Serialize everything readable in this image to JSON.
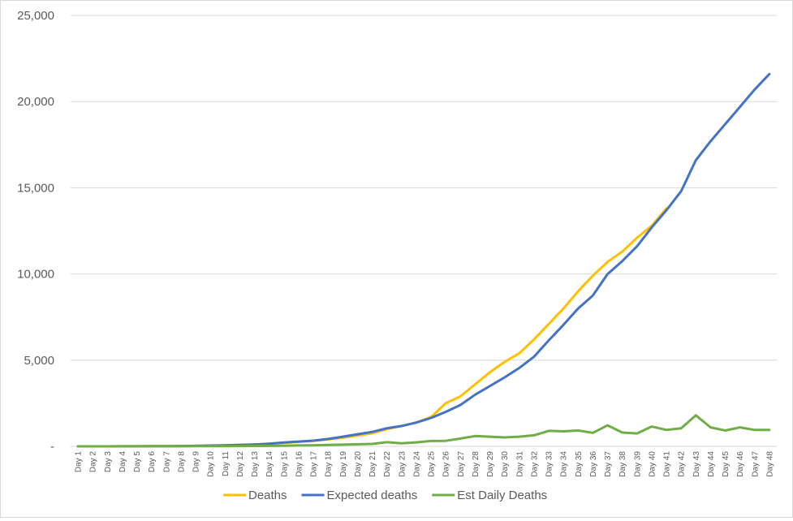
{
  "chart_data": {
    "type": "line",
    "title": "",
    "xlabel": "",
    "ylabel": "",
    "ylim": [
      0,
      25000
    ],
    "yticks": [
      0,
      5000,
      10000,
      15000,
      20000,
      25000
    ],
    "ytick_labels": [
      "-",
      "5,000",
      "10,000",
      "15,000",
      "20,000",
      "25,000"
    ],
    "grid": true,
    "legend_position": "bottom",
    "categories": [
      "Day 1",
      "Day 2",
      "Day 3",
      "Day 4",
      "Day 5",
      "Day 6",
      "Day 7",
      "Day 8",
      "Day 9",
      "Day 10",
      "Day 11",
      "Day 12",
      "Day 13",
      "Day 14",
      "Day 15",
      "Day 16",
      "Day 17",
      "Day 18",
      "Day 19",
      "Day 20",
      "Day 21",
      "Day 22",
      "Day 23",
      "Day 24",
      "Day 25",
      "Day 26",
      "Day 27",
      "Day 28",
      "Day 29",
      "Day 30",
      "Day 31",
      "Day 32",
      "Day 33",
      "Day 34",
      "Day 35",
      "Day 36",
      "Day 37",
      "Day 38",
      "Day 39",
      "Day 40",
      "Day 41",
      "Day 42",
      "Day 43",
      "Day 44",
      "Day 45",
      "Day 46",
      "Day 47",
      "Day 48"
    ],
    "series": [
      {
        "name": "Deaths",
        "color": "#ffc000",
        "values": [
          0,
          1,
          2,
          3,
          5,
          8,
          12,
          20,
          30,
          45,
          60,
          80,
          110,
          150,
          200,
          260,
          320,
          400,
          500,
          620,
          760,
          1000,
          1180,
          1380,
          1700,
          2500,
          2900,
          3600,
          4300,
          4900,
          5400,
          6200,
          7100,
          8000,
          9000,
          9900,
          10700,
          11300,
          12100,
          12800,
          13800,
          null,
          null,
          null,
          null,
          null,
          null,
          null
        ]
      },
      {
        "name": "Expected deaths",
        "color": "#4472c4",
        "values": [
          0,
          1,
          2,
          3,
          5,
          8,
          12,
          20,
          30,
          45,
          60,
          80,
          110,
          150,
          220,
          280,
          330,
          430,
          560,
          700,
          840,
          1050,
          1180,
          1380,
          1650,
          2000,
          2400,
          3000,
          3500,
          4000,
          4550,
          5200,
          6150,
          7050,
          8000,
          8750,
          10000,
          10750,
          11600,
          12700,
          13700,
          14800,
          16600,
          17700,
          18700,
          19700,
          20700,
          21600
        ]
      },
      {
        "name": "Est Daily Deaths",
        "color": "#70ad47",
        "values": [
          0,
          0,
          1,
          1,
          2,
          3,
          4,
          6,
          8,
          10,
          15,
          20,
          25,
          30,
          40,
          50,
          60,
          80,
          100,
          120,
          140,
          240,
          180,
          230,
          310,
          320,
          450,
          600,
          560,
          520,
          560,
          640,
          900,
          870,
          920,
          780,
          1220,
          800,
          750,
          1150,
          950,
          1050,
          1800,
          1100,
          920,
          1100,
          950,
          950
        ]
      }
    ]
  }
}
